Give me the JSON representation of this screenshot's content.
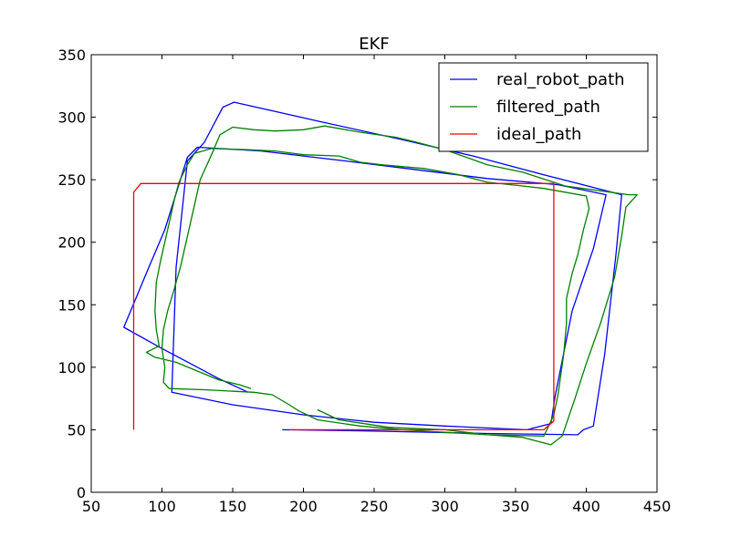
{
  "chart_data": {
    "type": "line",
    "title": "EKF",
    "xlabel": "",
    "ylabel": "",
    "xlim": [
      50,
      450
    ],
    "ylim": [
      0,
      350
    ],
    "xticks": [
      50,
      100,
      150,
      200,
      250,
      300,
      350,
      400,
      450
    ],
    "yticks": [
      0,
      50,
      100,
      150,
      200,
      250,
      300,
      350
    ],
    "grid": false,
    "legend_position": "top-right",
    "series": [
      {
        "name": "real_robot_path",
        "color": "#0000ff",
        "points": [
          [
            161,
            80
          ],
          [
            140,
            91
          ],
          [
            120,
            103
          ],
          [
            100,
            115
          ],
          [
            73,
            132
          ],
          [
            90,
            178
          ],
          [
            102,
            210
          ],
          [
            118,
            268
          ],
          [
            125,
            276
          ],
          [
            170,
            273
          ],
          [
            230,
            265
          ],
          [
            280,
            258
          ],
          [
            330,
            251
          ],
          [
            380,
            246
          ],
          [
            414,
            238
          ],
          [
            405,
            195
          ],
          [
            390,
            145
          ],
          [
            378,
            77
          ],
          [
            375,
            55
          ],
          [
            358,
            50
          ],
          [
            300,
            53
          ],
          [
            250,
            56
          ],
          [
            200,
            62
          ],
          [
            150,
            70
          ],
          [
            107,
            80
          ],
          [
            110,
            180
          ],
          [
            118,
            265
          ],
          [
            130,
            280
          ],
          [
            143,
            308
          ],
          [
            151,
            312
          ],
          [
            210,
            297
          ],
          [
            270,
            282
          ],
          [
            320,
            269
          ],
          [
            370,
            254
          ],
          [
            425,
            238
          ],
          [
            421,
            190
          ],
          [
            413,
            110
          ],
          [
            405,
            53
          ],
          [
            398,
            50
          ],
          [
            394,
            46
          ],
          [
            330,
            47
          ],
          [
            250,
            49
          ],
          [
            185,
            50
          ]
        ]
      },
      {
        "name": "filtered_path",
        "color": "#008000",
        "points": [
          [
            163,
            83
          ],
          [
            155,
            86
          ],
          [
            140,
            90
          ],
          [
            125,
            97
          ],
          [
            110,
            104
          ],
          [
            95,
            108
          ],
          [
            89,
            112
          ],
          [
            98,
            117
          ],
          [
            96,
            130
          ],
          [
            95,
            145
          ],
          [
            96,
            168
          ],
          [
            99,
            185
          ],
          [
            102,
            200
          ],
          [
            106,
            220
          ],
          [
            109,
            235
          ],
          [
            112,
            248
          ],
          [
            118,
            262
          ],
          [
            123,
            271
          ],
          [
            135,
            275
          ],
          [
            160,
            274
          ],
          [
            180,
            273
          ],
          [
            200,
            270
          ],
          [
            225,
            269
          ],
          [
            240,
            264
          ],
          [
            255,
            262
          ],
          [
            285,
            259
          ],
          [
            310,
            254
          ],
          [
            330,
            248
          ],
          [
            355,
            245
          ],
          [
            370,
            243
          ],
          [
            400,
            237
          ],
          [
            402,
            227
          ],
          [
            398,
            210
          ],
          [
            394,
            190
          ],
          [
            390,
            175
          ],
          [
            386,
            155
          ],
          [
            386,
            135
          ],
          [
            384,
            110
          ],
          [
            380,
            78
          ],
          [
            377,
            62
          ],
          [
            373,
            52
          ],
          [
            370,
            45
          ],
          [
            330,
            46
          ],
          [
            300,
            48
          ],
          [
            270,
            50
          ],
          [
            240,
            53
          ],
          [
            210,
            58
          ],
          [
            197,
            65
          ],
          [
            190,
            70
          ],
          [
            178,
            78
          ],
          [
            165,
            80
          ],
          [
            130,
            82
          ],
          [
            105,
            83
          ],
          [
            101,
            88
          ],
          [
            102,
            100
          ],
          [
            100,
            115
          ],
          [
            101,
            130
          ],
          [
            104,
            145
          ],
          [
            108,
            160
          ],
          [
            113,
            180
          ],
          [
            117,
            200
          ],
          [
            121,
            220
          ],
          [
            127,
            250
          ],
          [
            135,
            270
          ],
          [
            141,
            286
          ],
          [
            150,
            292
          ],
          [
            165,
            290
          ],
          [
            180,
            289
          ],
          [
            200,
            290
          ],
          [
            215,
            293
          ],
          [
            240,
            288
          ],
          [
            265,
            284
          ],
          [
            280,
            280
          ],
          [
            300,
            274
          ],
          [
            330,
            262
          ],
          [
            355,
            256
          ],
          [
            385,
            245
          ],
          [
            430,
            238
          ],
          [
            436,
            238
          ],
          [
            428,
            228
          ],
          [
            425,
            205
          ],
          [
            420,
            172
          ],
          [
            410,
            135
          ],
          [
            400,
            103
          ],
          [
            392,
            75
          ],
          [
            383,
            45
          ],
          [
            375,
            38
          ],
          [
            355,
            44
          ],
          [
            330,
            46
          ],
          [
            300,
            50
          ],
          [
            260,
            52
          ],
          [
            225,
            58
          ],
          [
            210,
            66
          ]
        ]
      },
      {
        "name": "ideal_path",
        "color": "#ff0000",
        "points": [
          [
            80,
            50
          ],
          [
            80,
            240
          ],
          [
            85,
            247
          ],
          [
            377,
            247
          ],
          [
            377,
            57
          ],
          [
            370,
            50
          ],
          [
            190,
            50
          ]
        ]
      }
    ]
  }
}
